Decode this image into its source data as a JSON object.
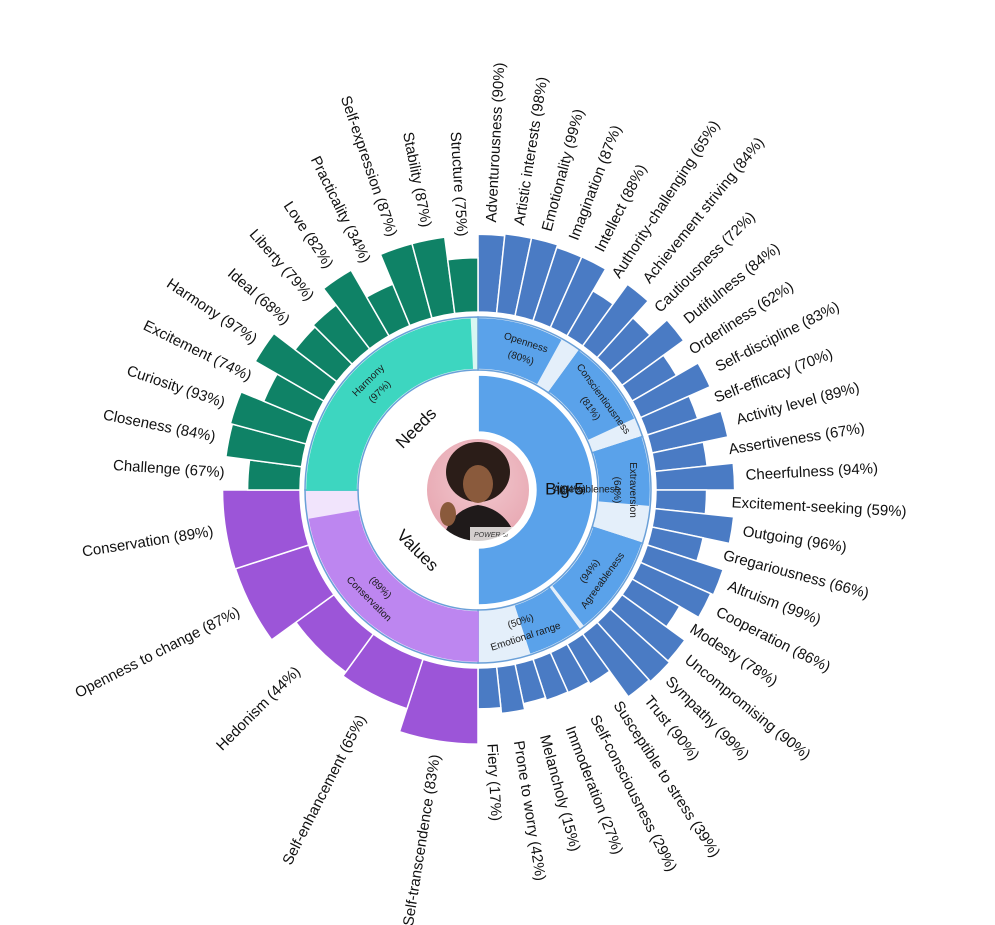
{
  "chart_data": {
    "type": "sunburst",
    "center": {
      "photo_caption": "POWER of"
    },
    "groups": [
      {
        "name": "Big 5",
        "facets": [
          {
            "name": "Openness",
            "percent": 80,
            "traits": [
              {
                "name": "Adventurousness",
                "percent": 90
              },
              {
                "name": "Artistic interests",
                "percent": 98
              },
              {
                "name": "Emotionality",
                "percent": 99
              },
              {
                "name": "Imagination",
                "percent": 87
              },
              {
                "name": "Intellect",
                "percent": 88
              },
              {
                "name": "Authority-challenging",
                "percent": 65
              }
            ]
          },
          {
            "name": "Conscientiousness",
            "percent": 81,
            "traits": [
              {
                "name": "Achievement striving",
                "percent": 84
              },
              {
                "name": "Cautiousness",
                "percent": 72
              },
              {
                "name": "Dutifulness",
                "percent": 84
              },
              {
                "name": "Orderliness",
                "percent": 62
              },
              {
                "name": "Self-discipline",
                "percent": 83
              },
              {
                "name": "Self-efficacy",
                "percent": 70
              }
            ]
          },
          {
            "name": "Extraversion",
            "percent": 64,
            "traits": [
              {
                "name": "Activity level",
                "percent": 89
              },
              {
                "name": "Assertiveness",
                "percent": 67
              },
              {
                "name": "Cheerfulness",
                "percent": 94
              },
              {
                "name": "Excitement-seeking",
                "percent": 59
              },
              {
                "name": "Outgoing",
                "percent": 96
              },
              {
                "name": "Gregariousness",
                "percent": 66
              }
            ]
          },
          {
            "name": "Agreeableness",
            "percent": 94,
            "traits": [
              {
                "name": "Altruism",
                "percent": 99
              },
              {
                "name": "Cooperation",
                "percent": 86
              },
              {
                "name": "Modesty",
                "percent": 78
              },
              {
                "name": "Uncompromising",
                "percent": 90
              },
              {
                "name": "Sympathy",
                "percent": 99
              },
              {
                "name": "Trust",
                "percent": 90
              }
            ]
          },
          {
            "name": "Emotional range",
            "percent": 50,
            "traits": [
              {
                "name": "Fiery",
                "percent": 17
              },
              {
                "name": "Prone to worry",
                "percent": 42
              },
              {
                "name": "Melancholy",
                "percent": 15
              },
              {
                "name": "Immoderation",
                "percent": 27
              },
              {
                "name": "Self-consciousness",
                "percent": 29
              },
              {
                "name": "Susceptible to stress",
                "percent": 39
              }
            ]
          }
        ],
        "group_label": "Big 5",
        "summary": {
          "name": "Agreeableness",
          "percent": 94
        }
      },
      {
        "name": "Values",
        "facets": [
          {
            "name": "Conservation",
            "percent": 89,
            "traits": [
              {
                "name": "Conservation",
                "percent": 89
              },
              {
                "name": "Openness to change",
                "percent": 87
              },
              {
                "name": "Hedonism",
                "percent": 44
              },
              {
                "name": "Self-enhancement",
                "percent": 65
              },
              {
                "name": "Self-transcendence",
                "percent": 83
              }
            ]
          }
        ],
        "group_label": "Values"
      },
      {
        "name": "Needs",
        "facets": [
          {
            "name": "Harmony",
            "percent": 97,
            "traits": [
              {
                "name": "Challenge",
                "percent": 67
              },
              {
                "name": "Closeness",
                "percent": 84
              },
              {
                "name": "Curiosity",
                "percent": 93
              },
              {
                "name": "Excitement",
                "percent": 74
              },
              {
                "name": "Harmony",
                "percent": 97
              },
              {
                "name": "Ideal",
                "percent": 68
              },
              {
                "name": "Liberty",
                "percent": 79
              },
              {
                "name": "Love",
                "percent": 82
              },
              {
                "name": "Practicality",
                "percent": 34
              },
              {
                "name": "Self-expression",
                "percent": 87
              },
              {
                "name": "Stability",
                "percent": 87
              },
              {
                "name": "Structure",
                "percent": 75
              }
            ]
          }
        ],
        "group_label": "Needs"
      }
    ],
    "colors": {
      "big5_outer": "#4a7bc4",
      "big5_mid": "#5aa2ea",
      "big5_inner": "#5aa2ea",
      "big5_light": "#e4effa",
      "values_outer": "#9c55d8",
      "values_mid": "#bd86f0",
      "values_inner": "#ffffff",
      "needs_outer": "#0f8266",
      "needs_mid": "#3dd6c0",
      "needs_inner": "#ffffff"
    }
  }
}
